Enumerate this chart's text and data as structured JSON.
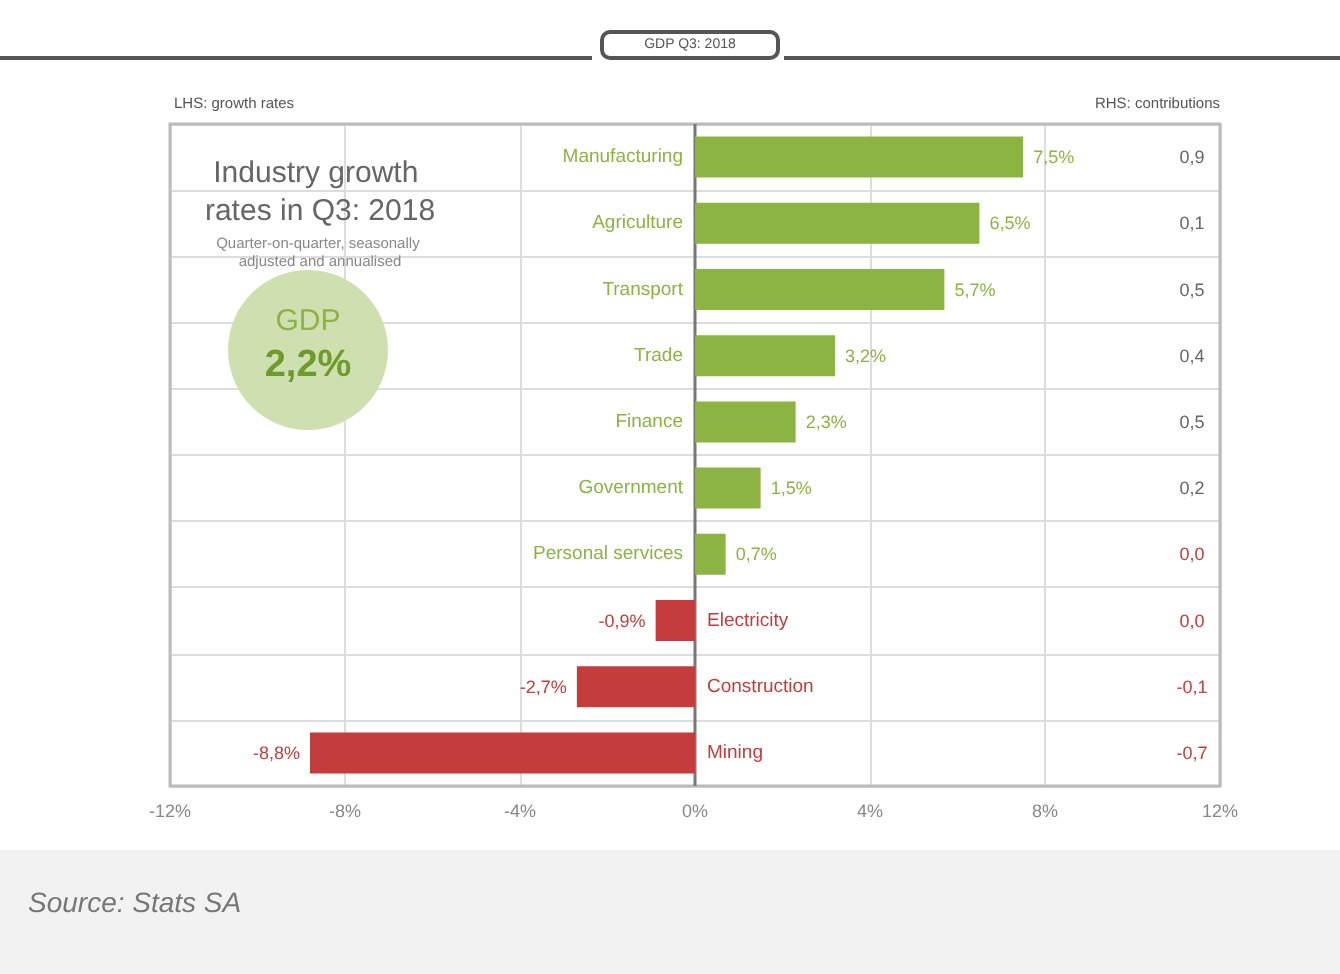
{
  "chart_data": {
    "type": "bar",
    "orientation": "horizontal",
    "title": "Industry growth rates in Q3: 2018",
    "subtitle": "Quarter-on-quarter, seasonally adjusted and annualised",
    "categories": [
      "Manufacturing",
      "Agriculture",
      "Transport",
      "Trade",
      "Finance",
      "Government",
      "Personal services",
      "Electricity",
      "Construction",
      "Mining"
    ],
    "values": [
      7.5,
      6.5,
      5.7,
      3.2,
      2.3,
      1.5,
      0.7,
      -0.9,
      -2.7,
      -8.8
    ],
    "value_labels": [
      "7,5%",
      "6,5%",
      "5,7%",
      "3,2%",
      "2,3%",
      "1,5%",
      "0,7%",
      "-0,9%",
      "-2,7%",
      "-8,8%"
    ],
    "colors": [
      "#8cb443",
      "#8cb443",
      "#8cb443",
      "#8cb443",
      "#8cb443",
      "#8cb443",
      "#8cb443",
      "#c43c3c",
      "#c43c3c",
      "#c43c3c"
    ],
    "xlim": [
      -12,
      12
    ],
    "xticks": [
      {
        "value": -12,
        "label": "-12%"
      },
      {
        "value": -8,
        "label": "-8%"
      },
      {
        "value": -4,
        "label": "-4%"
      },
      {
        "value": 0,
        "label": "0%"
      },
      {
        "value": 4,
        "label": "4%"
      },
      {
        "value": 8,
        "label": "8%"
      },
      {
        "value": 12,
        "label": "12%"
      }
    ],
    "grid": true,
    "annotations": [
      "GDP Q3: 2018",
      "LHS: growth rates",
      "RHS: contributions",
      "GDP",
      "2,2%",
      "0,9",
      "0,1",
      "0,5",
      "0,4",
      "0,5",
      "0,2",
      "0,0",
      "0,0",
      "-0,1",
      "-0,7",
      "Source: Stats SA"
    ]
  }
}
